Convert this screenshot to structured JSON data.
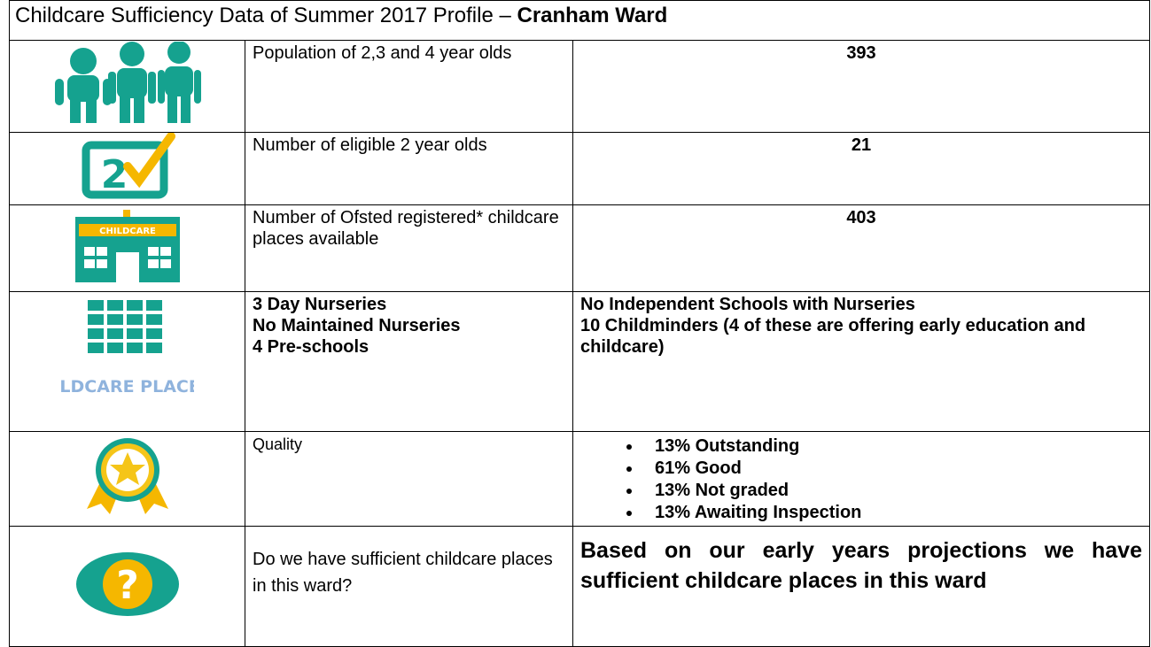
{
  "header": {
    "title": "Childcare Sufficiency Data of Summer 2017 Profile – ",
    "title_bold": "Cranham Ward"
  },
  "icons": {
    "checkbox_digit": "2",
    "building_sign": "CHILDCARE",
    "places_caption": "CHILDCARE PLACES",
    "question_mark": "?"
  },
  "rows": [
    {
      "label": "Population of 2,3 and 4 year olds",
      "value": "393"
    },
    {
      "label": "Number of eligible 2 year olds",
      "value": "21"
    },
    {
      "label": "Number of  Ofsted registered* childcare places available",
      "value": "403"
    },
    {
      "label_lines": [
        "3 Day Nurseries",
        "No Maintained Nurseries",
        "4 Pre-schools"
      ],
      "value_lines": [
        "No Independent Schools with Nurseries",
        "10 Childminders (4 of these are offering early education and childcare)"
      ]
    },
    {
      "label": "Quality",
      "bullets": [
        "13% Outstanding",
        "61% Good",
        "13% Not graded",
        "13% Awaiting Inspection"
      ]
    },
    {
      "label": "Do we have sufficient childcare places in this ward?",
      "value": "Based on our early years projections we have sufficient childcare places in this ward"
    }
  ]
}
